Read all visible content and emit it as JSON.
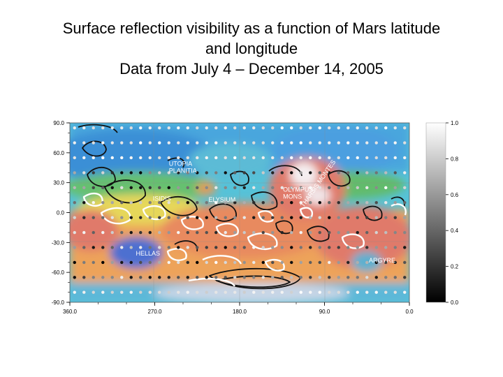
{
  "title_lines": [
    "Surface reflection visibility as a function of Mars latitude",
    "and longitude",
    "Data from July 4 – December 14, 2005"
  ],
  "chart_data": {
    "type": "heatmap",
    "xlabel": "",
    "ylabel": "",
    "xlim": [
      360,
      0
    ],
    "ylim": [
      -90,
      90
    ],
    "x_ticks": [
      "360.0",
      "270.0",
      "180.0",
      "90.0",
      "0.0"
    ],
    "x_tick_values": [
      360,
      270,
      180,
      90,
      0
    ],
    "y_ticks": [
      "90.0",
      "60.0",
      "30.0",
      "0.0",
      "-30.0",
      "-60.0",
      "-90.0"
    ],
    "y_tick_values": [
      90,
      60,
      30,
      0,
      -30,
      -60,
      -90
    ],
    "colorbar": {
      "range": [
        0,
        1
      ],
      "ticks": [
        "1.0",
        "0.8",
        "0.6",
        "0.4",
        "0.2",
        "0.0"
      ],
      "tick_values": [
        1.0,
        0.8,
        0.6,
        0.4,
        0.2,
        0.0
      ],
      "colormap": "grayscale black-to-white"
    },
    "regions": [
      {
        "label": "UTOPIA PLANITIA",
        "lon": 255,
        "lat": 47
      },
      {
        "label": "OLYMPUS MONS",
        "lon": 134,
        "lat": 21
      },
      {
        "label": "THARSIS MONTES",
        "lon": 112,
        "lat": 5
      },
      {
        "label": "ISIDIS",
        "lon": 272,
        "lat": 12
      },
      {
        "label": "ELYSIUM",
        "lon": 213,
        "lat": 11
      },
      {
        "label": "HELLAS",
        "lon": 290,
        "lat": -43
      },
      {
        "label": "ARGYRE",
        "lon": 43,
        "lat": -50
      }
    ],
    "grid_points": {
      "lon_spacing": 10,
      "lat_spacing": 15,
      "value_scale": "grayscale 0.0–1.0"
    }
  },
  "colors": {
    "ocean_blue": "#3a8fd6",
    "lowland_cyan": "#56c2d8",
    "mid_green": "#66c070",
    "yellow": "#e6d75a",
    "orange": "#eda35a",
    "highland_red": "#e07a6a",
    "peak_white": "#f4eef0"
  }
}
